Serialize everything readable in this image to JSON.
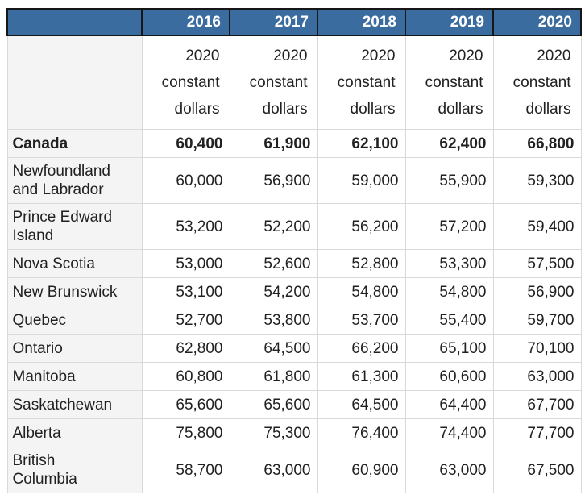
{
  "table": {
    "corner_label": "",
    "years": [
      "2016",
      "2017",
      "2018",
      "2019",
      "2020"
    ],
    "unit_label": "2020 constant dollars",
    "rows": [
      {
        "label": "Canada",
        "bold": true,
        "values": [
          "60,400",
          "61,900",
          "62,100",
          "62,400",
          "66,800"
        ]
      },
      {
        "label": "Newfoundland and Labrador",
        "bold": false,
        "values": [
          "60,000",
          "56,900",
          "59,000",
          "55,900",
          "59,300"
        ]
      },
      {
        "label": "Prince Edward Island",
        "bold": false,
        "values": [
          "53,200",
          "52,200",
          "56,200",
          "57,200",
          "59,400"
        ]
      },
      {
        "label": "Nova Scotia",
        "bold": false,
        "values": [
          "53,000",
          "52,600",
          "52,800",
          "53,300",
          "57,500"
        ]
      },
      {
        "label": "New Brunswick",
        "bold": false,
        "values": [
          "53,100",
          "54,200",
          "54,800",
          "54,800",
          "56,900"
        ]
      },
      {
        "label": "Quebec",
        "bold": false,
        "values": [
          "52,700",
          "53,800",
          "53,700",
          "55,400",
          "59,700"
        ]
      },
      {
        "label": "Ontario",
        "bold": false,
        "values": [
          "62,800",
          "64,500",
          "66,200",
          "65,100",
          "70,100"
        ]
      },
      {
        "label": "Manitoba",
        "bold": false,
        "values": [
          "60,800",
          "61,800",
          "61,300",
          "60,600",
          "63,000"
        ]
      },
      {
        "label": "Saskatchewan",
        "bold": false,
        "values": [
          "65,600",
          "65,600",
          "64,500",
          "64,400",
          "67,700"
        ]
      },
      {
        "label": "Alberta",
        "bold": false,
        "values": [
          "75,800",
          "75,300",
          "76,400",
          "74,400",
          "77,700"
        ]
      },
      {
        "label": "British Columbia",
        "bold": false,
        "values": [
          "58,700",
          "63,000",
          "60,900",
          "63,000",
          "67,500"
        ]
      }
    ],
    "colors": {
      "header_bg": "#3A6C9F",
      "header_text": "#FFFFFF",
      "header_border": "#161616",
      "stub_bg": "#F4F4F4",
      "body_border": "#D9D9D9",
      "text": "#212121"
    }
  },
  "chart_data": {
    "type": "table",
    "title": "",
    "columns": [
      "",
      "2016",
      "2017",
      "2018",
      "2019",
      "2020"
    ],
    "unit_row": "2020 constant dollars",
    "rows": [
      {
        "region": "Canada",
        "values": [
          60400,
          61900,
          62100,
          62400,
          66800
        ]
      },
      {
        "region": "Newfoundland and Labrador",
        "values": [
          60000,
          56900,
          59000,
          55900,
          59300
        ]
      },
      {
        "region": "Prince Edward Island",
        "values": [
          53200,
          52200,
          56200,
          57200,
          59400
        ]
      },
      {
        "region": "Nova Scotia",
        "values": [
          53000,
          52600,
          52800,
          53300,
          57500
        ]
      },
      {
        "region": "New Brunswick",
        "values": [
          53100,
          54200,
          54800,
          54800,
          56900
        ]
      },
      {
        "region": "Quebec",
        "values": [
          52700,
          53800,
          53700,
          55400,
          59700
        ]
      },
      {
        "region": "Ontario",
        "values": [
          62800,
          64500,
          66200,
          65100,
          70100
        ]
      },
      {
        "region": "Manitoba",
        "values": [
          60800,
          61800,
          61300,
          60600,
          63000
        ]
      },
      {
        "region": "Saskatchewan",
        "values": [
          65600,
          65600,
          64500,
          64400,
          67700
        ]
      },
      {
        "region": "Alberta",
        "values": [
          75800,
          75300,
          76400,
          74400,
          77700
        ]
      },
      {
        "region": "British Columbia",
        "values": [
          58700,
          63000,
          60900,
          63000,
          67500
        ]
      }
    ]
  }
}
